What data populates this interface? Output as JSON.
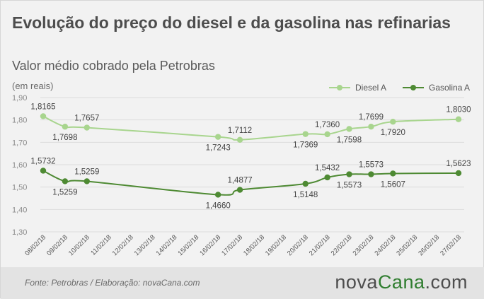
{
  "title": "Evolução do preço do diesel e da gasolina nas refinarias",
  "subtitle": "Valor médio cobrado pela Petrobras",
  "unit_label": "(em reais)",
  "footer": {
    "source": "Fonte:  Petrobras  / Elaboração:  novaCana.com",
    "logo_part1": "nova",
    "logo_part2": "Cana",
    "logo_part3": ".com"
  },
  "colors": {
    "diesel": "#a8d58e",
    "gasolina": "#4e8a33",
    "logo_accent": "#2f7d2f"
  },
  "chart_data": {
    "type": "line",
    "title": "Evolução do preço do diesel e da gasolina nas refinarias",
    "subtitle": "Valor médio cobrado pela Petrobras",
    "ylabel": "(em reais)",
    "xlabel": "",
    "ylim": [
      1.3,
      1.9
    ],
    "yticks": [
      "1,30",
      "1,40",
      "1,50",
      "1,60",
      "1,70",
      "1,80",
      "1,90"
    ],
    "grid": "horizontal",
    "legend": "top-right",
    "categories": [
      "08/02/18",
      "09/02/18",
      "10/02/18",
      "11/02/18",
      "12/02/18",
      "13/02/18",
      "14/02/18",
      "15/02/18",
      "16/02/18",
      "17/02/18",
      "18/02/18",
      "19/02/18",
      "20/02/18",
      "21/02/18",
      "22/02/18",
      "23/02/18",
      "24/02/18",
      "25/02/18",
      "26/02/18",
      "27/02/18"
    ],
    "series": [
      {
        "name": "Diesel A",
        "values": [
          1.8165,
          1.7698,
          1.7657,
          null,
          null,
          null,
          null,
          null,
          1.7243,
          1.7112,
          null,
          null,
          1.7369,
          1.736,
          1.7598,
          1.7699,
          1.792,
          null,
          null,
          1.803
        ],
        "labels": [
          "1,8165",
          "1,7698",
          "1,7657",
          null,
          null,
          null,
          null,
          null,
          "1,7243",
          "1,7112",
          null,
          null,
          "1,7369",
          "1,7360",
          "1,7598",
          "1,7699",
          "1,7920",
          null,
          null,
          "1,8030"
        ]
      },
      {
        "name": "Gasolina A",
        "values": [
          1.5732,
          1.5259,
          1.5259,
          null,
          null,
          null,
          null,
          null,
          1.466,
          1.4877,
          null,
          null,
          1.5148,
          1.5432,
          1.5573,
          1.5573,
          1.5607,
          null,
          null,
          1.5623
        ],
        "labels": [
          "1,5732",
          "1,5259",
          "1,5259",
          null,
          null,
          null,
          null,
          null,
          "1,4660",
          "1,4877",
          null,
          null,
          "1,5148",
          "1,5432",
          "1,5573",
          "1,5573",
          "1,5607",
          null,
          null,
          "1,5623"
        ]
      }
    ]
  }
}
